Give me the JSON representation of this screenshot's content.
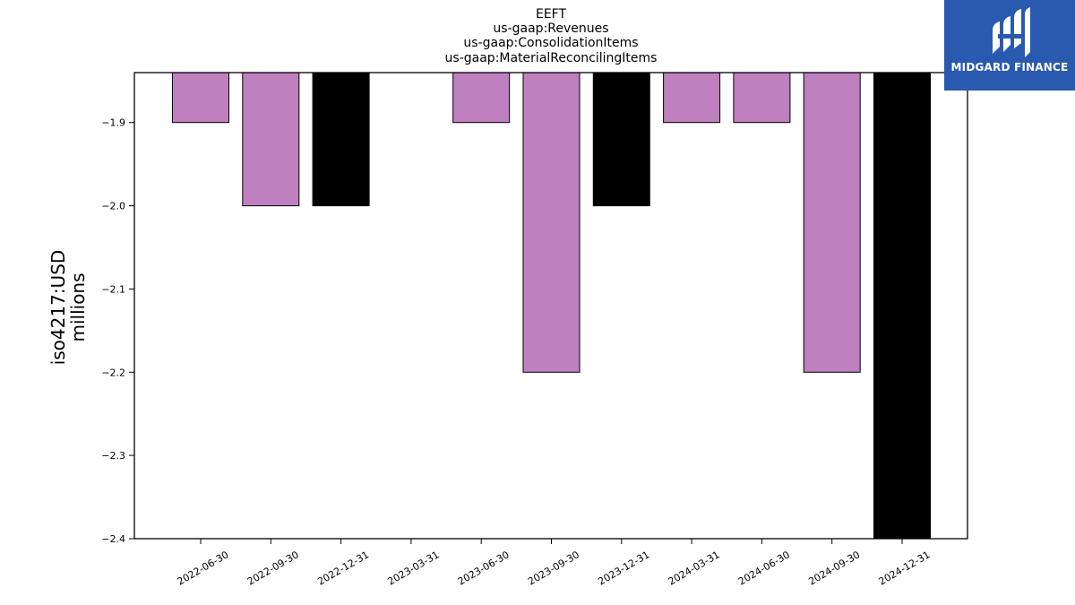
{
  "chart_data": {
    "type": "bar",
    "title_lines": [
      "EEFT",
      "us-gaap:Revenues",
      "us-gaap:ConsolidationItems",
      "us-gaap:MaterialReconcilingItems"
    ],
    "ylabel_lines": [
      "iso4217:USD",
      "millions"
    ],
    "xlabel": "",
    "ylim": [
      -2.4,
      -1.84
    ],
    "yticks": [
      -1.9,
      -2.0,
      -2.1,
      -2.2,
      -2.3,
      -2.4
    ],
    "ytick_labels": [
      "−1.9",
      "−2.0",
      "−2.1",
      "−2.2",
      "−2.3",
      "−2.4"
    ],
    "categories": [
      "2022-06-30",
      "2022-09-30",
      "2022-12-31",
      "2023-03-31",
      "2023-06-30",
      "2023-09-30",
      "2023-12-31",
      "2024-03-31",
      "2024-06-30",
      "2024-09-30",
      "2024-12-31"
    ],
    "values": [
      -1.9,
      -2.0,
      -2.0,
      null,
      -1.9,
      -2.2,
      -2.0,
      -1.9,
      -1.9,
      -2.2,
      -2.4
    ],
    "bar_colors": [
      "#bf80bf",
      "#bf80bf",
      "#000000",
      null,
      "#bf80bf",
      "#bf80bf",
      "#000000",
      "#bf80bf",
      "#bf80bf",
      "#bf80bf",
      "#000000"
    ],
    "grid": false,
    "legend": "none"
  },
  "logo": {
    "name": "MIDGARD FINANCE",
    "background": "#2a5ab0"
  }
}
